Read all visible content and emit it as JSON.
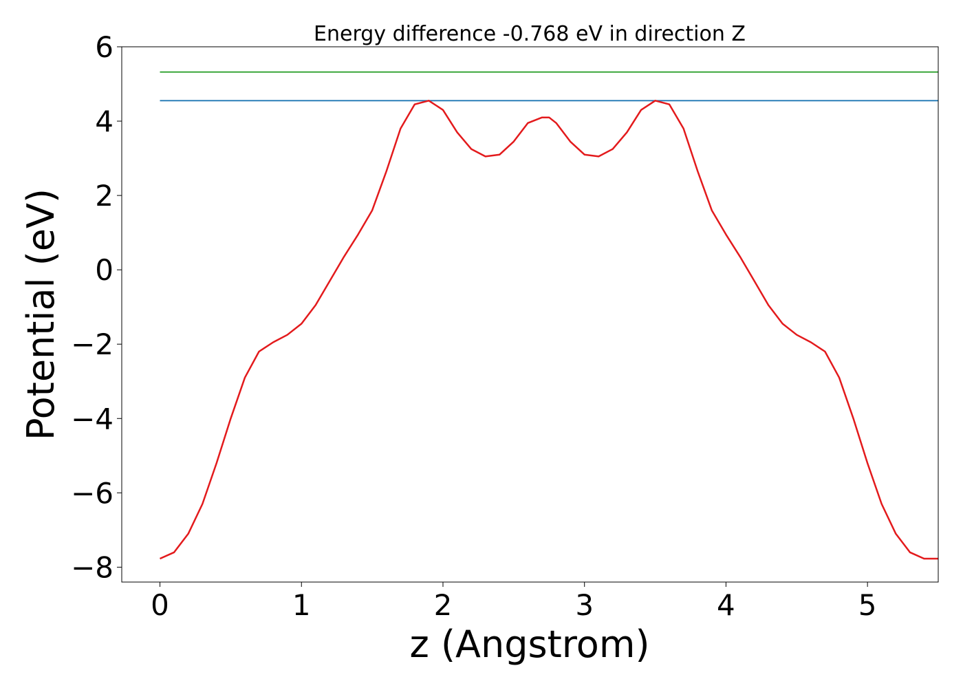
{
  "chart_data": {
    "type": "line",
    "title": "Energy difference -0.768 eV in direction Z",
    "xlabel": "z (Angstrom)",
    "ylabel": "Potential (eV)",
    "xlim": [
      -0.27,
      5.5
    ],
    "ylim": [
      -8.4,
      6.0
    ],
    "xticks": [
      0,
      1,
      2,
      3,
      4,
      5
    ],
    "xtick_labels": [
      "0",
      "1",
      "2",
      "3",
      "4",
      "5"
    ],
    "yticks": [
      -8,
      -6,
      -4,
      -2,
      0,
      2,
      4,
      6
    ],
    "ytick_labels": [
      "−8",
      "−6",
      "−4",
      "−2",
      "0",
      "2",
      "4",
      "6"
    ],
    "grid": false,
    "series": [
      {
        "color": "#2ca02c",
        "x": [
          0,
          5.5
        ],
        "y": [
          5.32,
          5.32
        ]
      },
      {
        "color": "#1f77b4",
        "x": [
          0,
          5.5
        ],
        "y": [
          4.55,
          4.55
        ]
      },
      {
        "color": "#e31a1c",
        "x": [
          0,
          0.1,
          0.2,
          0.3,
          0.4,
          0.5,
          0.6,
          0.7,
          0.8,
          0.9,
          1.0,
          1.1,
          1.2,
          1.3,
          1.4,
          1.5,
          1.6,
          1.7,
          1.8,
          1.9,
          2.0,
          2.1,
          2.2,
          2.3,
          2.4,
          2.5,
          2.6,
          2.7,
          2.75,
          2.8,
          2.9,
          3.0,
          3.1,
          3.2,
          3.3,
          3.4,
          3.5,
          3.6,
          3.7,
          3.8,
          3.9,
          4.0,
          4.1,
          4.2,
          4.3,
          4.4,
          4.5,
          4.6,
          4.7,
          4.8,
          4.9,
          5.0,
          5.1,
          5.2,
          5.3,
          5.4,
          5.5
        ],
        "y": [
          -7.77,
          -7.6,
          -7.1,
          -6.3,
          -5.2,
          -4.0,
          -2.9,
          -2.2,
          -1.95,
          -1.75,
          -1.45,
          -0.95,
          -0.3,
          0.35,
          0.95,
          1.6,
          2.65,
          3.8,
          4.45,
          4.55,
          4.3,
          3.7,
          3.25,
          3.05,
          3.1,
          3.45,
          3.95,
          4.1,
          4.1,
          3.95,
          3.45,
          3.1,
          3.05,
          3.25,
          3.7,
          4.3,
          4.55,
          4.45,
          3.8,
          2.65,
          1.6,
          0.95,
          0.35,
          -0.3,
          -0.95,
          -1.45,
          -1.75,
          -1.95,
          -2.2,
          -2.9,
          -4.0,
          -5.2,
          -6.3,
          -7.1,
          -7.6,
          -7.77,
          -7.77
        ]
      }
    ]
  }
}
